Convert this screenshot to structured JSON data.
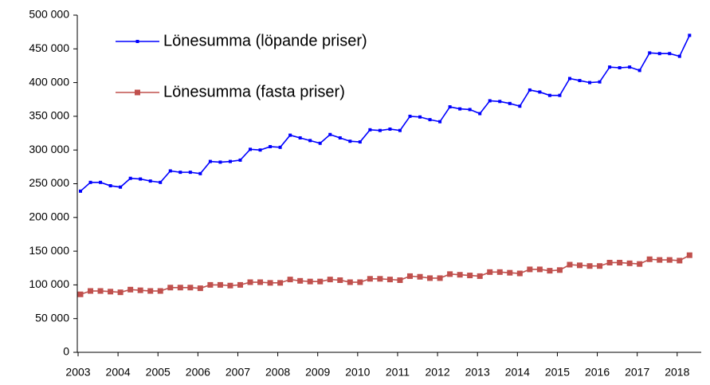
{
  "chart_data": {
    "type": "line",
    "categories": [
      "2003",
      null,
      null,
      null,
      "2004",
      null,
      null,
      null,
      "2005",
      null,
      null,
      null,
      "2006",
      null,
      null,
      null,
      "2007",
      null,
      null,
      null,
      "2008",
      null,
      null,
      null,
      "2009",
      null,
      null,
      null,
      "2010",
      null,
      null,
      null,
      "2011",
      null,
      null,
      null,
      "2012",
      null,
      null,
      null,
      "2013",
      null,
      null,
      null,
      "2014",
      null,
      null,
      null,
      "2015",
      null,
      null,
      null,
      "2016",
      null,
      null,
      null,
      "2017",
      null,
      null,
      null,
      "2018",
      null
    ],
    "series": [
      {
        "name": "Lönesumma (löpande priser)",
        "color": "#0000ff",
        "values": [
          239000,
          252000,
          252000,
          247000,
          245000,
          258000,
          257000,
          254000,
          252000,
          269000,
          267000,
          267000,
          265000,
          283000,
          282000,
          283000,
          285000,
          301000,
          300000,
          305000,
          304000,
          322000,
          318000,
          314000,
          310000,
          323000,
          318000,
          313000,
          312000,
          330000,
          329000,
          331000,
          329000,
          350000,
          349000,
          345000,
          342000,
          364000,
          361000,
          360000,
          354000,
          373000,
          372000,
          369000,
          365000,
          389000,
          386000,
          381000,
          381000,
          406000,
          403000,
          400000,
          401000,
          423000,
          422000,
          423000,
          418000,
          444000,
          443000,
          443000,
          439000,
          470000
        ]
      },
      {
        "name": "Lönesumma (fasta priser)",
        "color": "#c0504d",
        "values": [
          86000,
          91000,
          91000,
          90000,
          89000,
          93000,
          92000,
          91000,
          91000,
          96000,
          96000,
          96000,
          95000,
          100000,
          100000,
          99000,
          100000,
          104000,
          104000,
          103000,
          103000,
          108000,
          106000,
          105000,
          105000,
          108000,
          107000,
          104000,
          104000,
          109000,
          109000,
          108000,
          107000,
          113000,
          112000,
          110000,
          110000,
          116000,
          115000,
          114000,
          113000,
          119000,
          119000,
          118000,
          117000,
          123000,
          123000,
          121000,
          122000,
          130000,
          129000,
          128000,
          128000,
          133000,
          133000,
          132000,
          131000,
          138000,
          137000,
          137000,
          136000,
          144000
        ]
      }
    ],
    "ylim": [
      0,
      500000
    ],
    "yticks": [
      0,
      {
        "value": 50000,
        "label": "50 000"
      },
      {
        "value": 100000,
        "label": "100 000"
      },
      {
        "value": 150000,
        "label": "150 000"
      },
      {
        "value": 200000,
        "label": "200 000"
      },
      {
        "value": 250000,
        "label": "250 000"
      },
      {
        "value": 300000,
        "label": "300 000"
      },
      {
        "value": 350000,
        "label": "350 000"
      },
      {
        "value": 400000,
        "label": "400 000"
      },
      {
        "value": 450000,
        "label": "450 000"
      },
      {
        "value": 500000,
        "label": "500 000"
      }
    ],
    "legend": "upper left",
    "grid": false
  }
}
